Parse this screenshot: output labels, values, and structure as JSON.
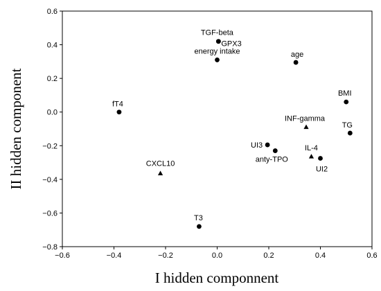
{
  "chart_data": {
    "type": "scatter",
    "xlabel": "I hidden componnent",
    "ylabel": "II hidden component",
    "xlim": [
      -0.6,
      0.6
    ],
    "ylim": [
      -0.8,
      0.6
    ],
    "xticks": [
      "−0.6",
      "−0.4",
      "−0.2",
      "0.0",
      "0.2",
      "0.4",
      "0.6"
    ],
    "yticks": [
      "0.6",
      "0.4",
      "0.2",
      "0.0",
      "−0.2",
      "−0.4",
      "−0.6",
      "−0.8"
    ],
    "grid": false,
    "points": [
      {
        "label": "TGF-beta",
        "x": 0.005,
        "y": 0.42,
        "marker": "circle"
      },
      {
        "label": "GPX3",
        "x": 0.005,
        "y": 0.42,
        "marker": "circle"
      },
      {
        "label": "energy intake",
        "x": 0.0,
        "y": 0.31,
        "marker": "circle"
      },
      {
        "label": "age",
        "x": 0.305,
        "y": 0.295,
        "marker": "circle"
      },
      {
        "label": "BMI",
        "x": 0.5,
        "y": 0.06,
        "marker": "circle"
      },
      {
        "label": "fT4",
        "x": -0.38,
        "y": 0.0,
        "marker": "circle"
      },
      {
        "label": "INF-gamma",
        "x": 0.345,
        "y": -0.09,
        "marker": "triangle"
      },
      {
        "label": "TG",
        "x": 0.515,
        "y": -0.125,
        "marker": "circle"
      },
      {
        "label": "UI3",
        "x": 0.195,
        "y": -0.195,
        "marker": "circle"
      },
      {
        "label": "anty-TPO",
        "x": 0.225,
        "y": -0.23,
        "marker": "circle"
      },
      {
        "label": "IL-4",
        "x": 0.365,
        "y": -0.265,
        "marker": "triangle"
      },
      {
        "label": "UI2",
        "x": 0.4,
        "y": -0.275,
        "marker": "circle"
      },
      {
        "label": "CXCL10",
        "x": -0.22,
        "y": -0.365,
        "marker": "triangle"
      },
      {
        "label": "T3",
        "x": -0.07,
        "y": -0.68,
        "marker": "circle"
      }
    ]
  }
}
